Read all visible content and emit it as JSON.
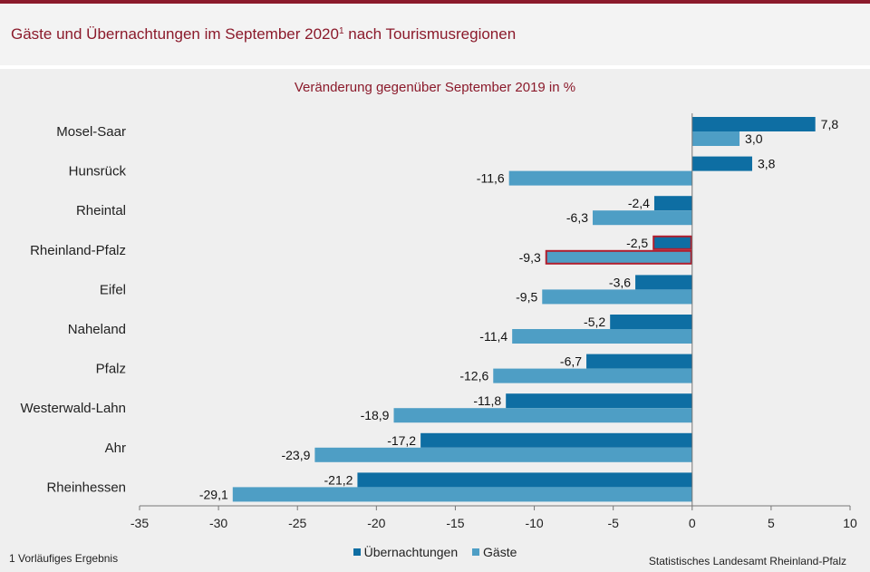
{
  "header": {
    "title": "Gäste und Übernachtungen im September 2020",
    "title_sup": "1",
    "title_suffix": " nach Tourismusregionen"
  },
  "colors": {
    "accent": "#8b1a2b",
    "series_uebernachtungen": "#0e6ea3",
    "series_gaeste": "#4e9ec5",
    "highlight_border": "#b01e2e"
  },
  "footnote": "1 Vorläufiges Ergebnis",
  "source": "Statistisches Landesamt Rheinland-Pfalz",
  "chart_data": {
    "type": "bar",
    "orientation": "horizontal",
    "subtitle": "Veränderung gegenüber September 2019 in %",
    "categories": [
      "Mosel-Saar",
      "Hunsrück",
      "Rheintal",
      "Rheinland-Pfalz",
      "Eifel",
      "Naheland",
      "Pfalz",
      "Westerwald-Lahn",
      "Ahr",
      "Rheinhessen"
    ],
    "highlighted_category": "Rheinland-Pfalz",
    "series": [
      {
        "name": "Übernachtungen",
        "values": [
          7.8,
          3.8,
          -2.4,
          -2.5,
          -3.6,
          -5.2,
          -6.7,
          -11.8,
          -17.2,
          -21.2
        ],
        "labels": [
          "7,8",
          "3,8",
          "-2,4",
          "-2,5",
          "-3,6",
          "-5,2",
          "-6,7",
          "-11,8",
          "-17,2",
          "-21,2"
        ]
      },
      {
        "name": "Gäste",
        "values": [
          3.0,
          -11.6,
          -6.3,
          -9.3,
          -9.5,
          -11.4,
          -12.6,
          -18.9,
          -23.9,
          -29.1
        ],
        "labels": [
          "3,0",
          "-11,6",
          "-6,3",
          "-9,3",
          "-9,5",
          "-11,4",
          "-12,6",
          "-18,9",
          "-23,9",
          "-29,1"
        ]
      }
    ],
    "xlim": [
      -35,
      10
    ],
    "xticks": [
      -35,
      -30,
      -25,
      -20,
      -15,
      -10,
      -5,
      0,
      5,
      10
    ],
    "grid": false,
    "legend_position": "bottom"
  }
}
